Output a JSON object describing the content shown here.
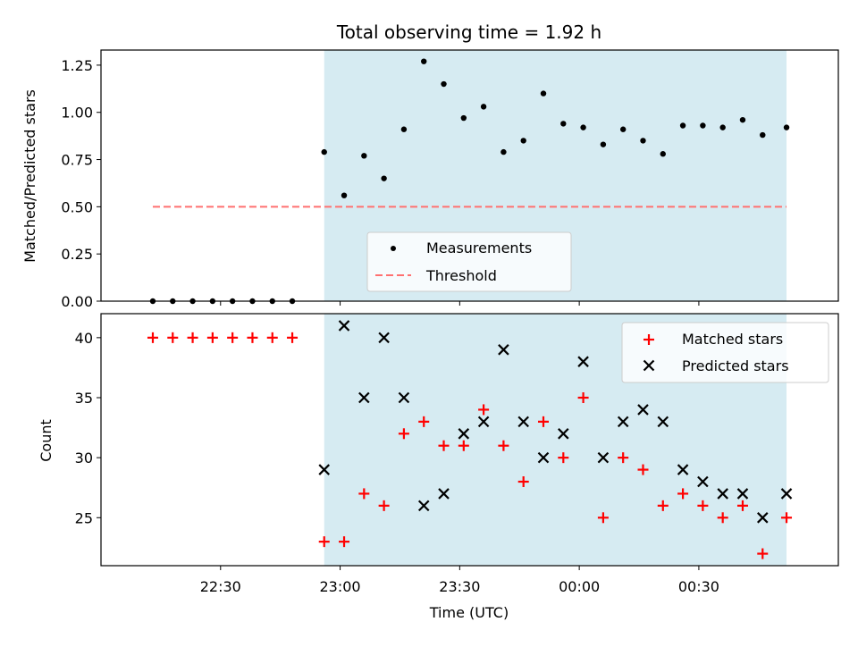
{
  "colors": {
    "shade": "#add8e6",
    "measurement": "#000000",
    "threshold": "#ff7070",
    "matched": "#ff0000",
    "predicted": "#000000"
  },
  "chart_data": [
    {
      "type": "scatter",
      "title": "Total observing time = 1.92 h",
      "xlabel": "",
      "ylabel": "Matched/Predicted stars",
      "ylim": [
        0,
        1.33
      ],
      "yticks": [
        "0.00",
        "0.25",
        "0.50",
        "0.75",
        "1.00",
        "1.25"
      ],
      "shaded_region": {
        "from": "22:56",
        "to": "00:52"
      },
      "legend": {
        "placement": "lower center",
        "entries": [
          "Measurements",
          "Threshold"
        ]
      },
      "threshold": {
        "name": "Threshold",
        "value": 0.5,
        "from": "22:13",
        "to": "00:52",
        "style": "dashed"
      },
      "series": [
        {
          "name": "Measurements",
          "x": [
            "22:13",
            "22:18",
            "22:23",
            "22:28",
            "22:33",
            "22:38",
            "22:43",
            "22:48",
            "22:56",
            "23:01",
            "23:06",
            "23:11",
            "23:16",
            "23:21",
            "23:26",
            "23:31",
            "23:36",
            "23:41",
            "23:46",
            "23:51",
            "23:56",
            "24:01",
            "24:06",
            "24:11",
            "24:16",
            "24:21",
            "24:26",
            "24:31",
            "24:36",
            "24:41",
            "24:46",
            "24:52"
          ],
          "values": [
            0,
            0,
            0,
            0,
            0,
            0,
            0,
            0,
            0.79,
            0.56,
            0.77,
            0.65,
            0.91,
            1.27,
            1.15,
            0.97,
            1.03,
            0.79,
            0.85,
            1.1,
            0.94,
            0.92,
            0.83,
            0.91,
            0.85,
            0.78,
            0.93,
            0.93,
            0.92,
            0.96,
            0.88,
            0.92
          ]
        }
      ]
    },
    {
      "type": "scatter",
      "title": "",
      "xlabel": "Time (UTC)",
      "ylabel": "Count",
      "xticks": [
        "22:30",
        "23:00",
        "23:30",
        "00:00",
        "00:30"
      ],
      "ylim": [
        21,
        42
      ],
      "yticks": [
        "25",
        "30",
        "35",
        "40"
      ],
      "shaded_region": {
        "from": "22:56",
        "to": "00:52"
      },
      "legend": {
        "placement": "upper right",
        "entries": [
          "Matched stars",
          "Predicted stars"
        ]
      },
      "series": [
        {
          "name": "Matched stars",
          "marker": "+",
          "x": [
            "22:13",
            "22:18",
            "22:23",
            "22:28",
            "22:33",
            "22:38",
            "22:43",
            "22:48",
            "22:56",
            "23:01",
            "23:06",
            "23:11",
            "23:16",
            "23:21",
            "23:26",
            "23:31",
            "23:36",
            "23:41",
            "23:46",
            "23:51",
            "23:56",
            "24:01",
            "24:06",
            "24:11",
            "24:16",
            "24:21",
            "24:26",
            "24:31",
            "24:36",
            "24:41",
            "24:46",
            "24:52"
          ],
          "values": [
            40,
            40,
            40,
            40,
            40,
            40,
            40,
            40,
            23,
            23,
            27,
            26,
            32,
            33,
            31,
            31,
            34,
            31,
            28,
            33,
            30,
            35,
            25,
            30,
            29,
            26,
            27,
            26,
            25,
            26,
            22,
            25
          ]
        },
        {
          "name": "Predicted stars",
          "marker": "x",
          "x": [
            "22:56",
            "23:01",
            "23:06",
            "23:11",
            "23:16",
            "23:21",
            "23:26",
            "23:31",
            "23:36",
            "23:41",
            "23:46",
            "23:51",
            "23:56",
            "24:01",
            "24:06",
            "24:11",
            "24:16",
            "24:21",
            "24:26",
            "24:31",
            "24:36",
            "24:41",
            "24:46",
            "24:52"
          ],
          "values": [
            29,
            41,
            35,
            40,
            35,
            26,
            27,
            32,
            33,
            39,
            33,
            30,
            32,
            38,
            30,
            33,
            34,
            33,
            29,
            28,
            27,
            27,
            25,
            27
          ]
        }
      ]
    }
  ]
}
